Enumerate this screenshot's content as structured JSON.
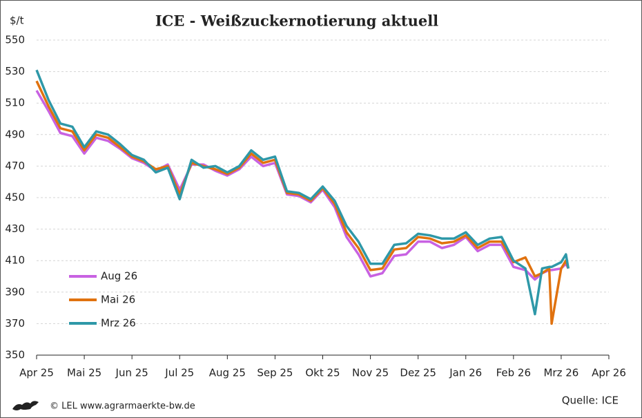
{
  "chart_data": {
    "type": "line",
    "title": "ICE - Weißzuckernotierung aktuell",
    "y_label": "$/t",
    "source": "Quelle: ICE",
    "credit": "© LEL www.agrarmaerkte-bw.de",
    "xlim": [
      0,
      12
    ],
    "xticks": [
      {
        "value": 0,
        "label": "Apr 25"
      },
      {
        "value": 1,
        "label": "Mai 25"
      },
      {
        "value": 2,
        "label": "Jun 25"
      },
      {
        "value": 3,
        "label": "Jul 25"
      },
      {
        "value": 4,
        "label": "Aug 25"
      },
      {
        "value": 5,
        "label": "Sep 25"
      },
      {
        "value": 6,
        "label": "Okt 25"
      },
      {
        "value": 7,
        "label": "Nov 25"
      },
      {
        "value": 8,
        "label": "Dez 25"
      },
      {
        "value": 9,
        "label": "Jan 26"
      },
      {
        "value": 10,
        "label": "Feb 26"
      },
      {
        "value": 11,
        "label": "Mrz 26"
      },
      {
        "value": 12,
        "label": "Apr 26"
      }
    ],
    "ylim": [
      350,
      550
    ],
    "yticks": [
      350,
      370,
      390,
      410,
      430,
      450,
      470,
      490,
      510,
      530,
      550
    ],
    "grid": true,
    "legend": "lower left",
    "x": [
      0,
      0.25,
      0.5,
      0.75,
      1,
      1.25,
      1.5,
      1.75,
      2,
      2.25,
      2.5,
      2.75,
      3,
      3.25,
      3.5,
      3.75,
      4,
      4.25,
      4.5,
      4.75,
      5,
      5.25,
      5.5,
      5.75,
      6,
      6.25,
      6.5,
      6.75,
      7,
      7.25,
      7.5,
      7.75,
      8,
      8.25,
      8.5,
      8.75,
      9,
      9.25,
      9.5,
      9.75,
      10,
      10.25,
      10.45,
      10.6,
      10.75,
      10.8,
      11,
      11.1,
      11.15
    ],
    "series": [
      {
        "name": "Aug 26",
        "color": "#c862e2",
        "values": [
          518,
          505,
          491,
          489,
          478,
          488,
          486,
          481,
          475,
          472,
          467,
          471,
          455,
          471,
          471,
          467,
          464,
          468,
          476,
          470,
          472,
          452,
          451,
          447,
          455,
          444,
          425,
          414,
          400,
          402,
          413,
          414,
          422,
          422,
          418,
          420,
          425,
          416,
          420,
          420,
          406,
          404,
          398,
          402,
          404,
          404,
          405,
          408,
          405
        ]
      },
      {
        "name": "Mai 26",
        "color": "#e0720f",
        "values": [
          524,
          508,
          494,
          492,
          480,
          490,
          488,
          482,
          476,
          473,
          468,
          470,
          452,
          472,
          470,
          468,
          465,
          469,
          478,
          472,
          474,
          453,
          452,
          448,
          456,
          446,
          428,
          418,
          404,
          405,
          417,
          418,
          425,
          424,
          421,
          422,
          426,
          418,
          422,
          422,
          409,
          412,
          400,
          402,
          405,
          370,
          405,
          410,
          405
        ]
      },
      {
        "name": "Mrz 26",
        "color": "#2e98a8",
        "values": [
          531,
          512,
          497,
          495,
          482,
          492,
          490,
          484,
          477,
          474,
          466,
          469,
          449,
          474,
          469,
          470,
          466,
          470,
          480,
          474,
          476,
          454,
          453,
          449,
          457,
          448,
          432,
          422,
          408,
          408,
          420,
          421,
          427,
          426,
          424,
          424,
          428,
          420,
          424,
          425,
          410,
          405,
          376,
          405,
          406,
          406,
          409,
          414,
          405
        ]
      }
    ]
  }
}
